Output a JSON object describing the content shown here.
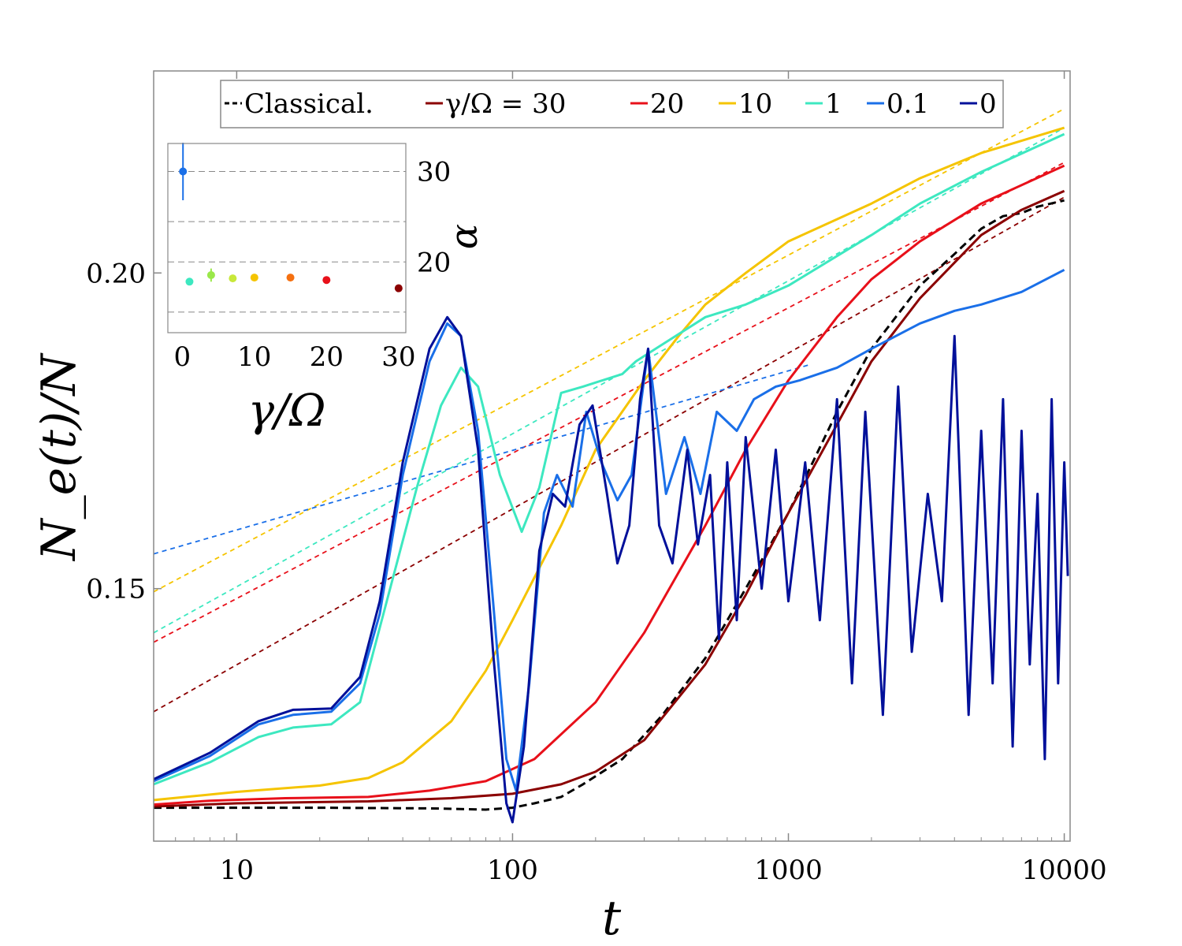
{
  "chart_data": {
    "type": "line",
    "xlabel": "t",
    "ylabel": "N_e(t)/N",
    "xscale": "log",
    "xlim": [
      5,
      10500
    ],
    "ylim": [
      0.11,
      0.232
    ],
    "x_ticks": [
      10,
      100,
      1000,
      10000
    ],
    "x_tick_labels": [
      "10",
      "100",
      "1000",
      "10000"
    ],
    "y_ticks": [
      0.15,
      0.2
    ],
    "y_tick_labels": [
      "0.15",
      "0.20"
    ],
    "legend": {
      "placement": "top-center",
      "entries": [
        {
          "label": "Classical.",
          "color": "#000000",
          "style": "dashed"
        },
        {
          "label": "γ/Ω = 30",
          "color": "#8b0000",
          "style": "solid"
        },
        {
          "label": "20",
          "color": "#e8101a",
          "style": "solid"
        },
        {
          "label": "10",
          "color": "#f5c400",
          "style": "solid"
        },
        {
          "label": "1",
          "color": "#3de8c0",
          "style": "solid"
        },
        {
          "label": "0.1",
          "color": "#1a6fe8",
          "style": "solid"
        },
        {
          "label": "0",
          "color": "#00109a",
          "style": "solid"
        }
      ]
    },
    "series": [
      {
        "name": "Classical.",
        "color": "#000000",
        "style": "dashed",
        "points": [
          [
            5,
            0.1153
          ],
          [
            20,
            0.1153
          ],
          [
            50,
            0.1152
          ],
          [
            80,
            0.115
          ],
          [
            100,
            0.1153
          ],
          [
            120,
            0.116
          ],
          [
            150,
            0.117
          ],
          [
            180,
            0.119
          ],
          [
            250,
            0.123
          ],
          [
            350,
            0.13
          ],
          [
            500,
            0.139
          ],
          [
            700,
            0.15
          ],
          [
            1000,
            0.162
          ],
          [
            1500,
            0.178
          ],
          [
            2000,
            0.188
          ],
          [
            3000,
            0.198
          ],
          [
            4000,
            0.203
          ],
          [
            5000,
            0.207
          ],
          [
            6000,
            0.209
          ],
          [
            7000,
            0.2095
          ],
          [
            8000,
            0.2105
          ],
          [
            10000,
            0.2115
          ]
        ]
      },
      {
        "name": "γ/Ω = 30",
        "color": "#8b0000",
        "style": "solid",
        "points": [
          [
            5,
            0.1155
          ],
          [
            10,
            0.116
          ],
          [
            30,
            0.1163
          ],
          [
            60,
            0.1168
          ],
          [
            100,
            0.1175
          ],
          [
            150,
            0.119
          ],
          [
            200,
            0.121
          ],
          [
            300,
            0.126
          ],
          [
            500,
            0.138
          ],
          [
            700,
            0.149
          ],
          [
            1000,
            0.162
          ],
          [
            1500,
            0.176
          ],
          [
            2000,
            0.186
          ],
          [
            3000,
            0.196
          ],
          [
            5000,
            0.206
          ],
          [
            7000,
            0.21
          ],
          [
            10000,
            0.213
          ]
        ]
      },
      {
        "name": "20",
        "color": "#e8101a",
        "style": "solid",
        "points": [
          [
            5,
            0.1158
          ],
          [
            8,
            0.1164
          ],
          [
            15,
            0.1168
          ],
          [
            30,
            0.117
          ],
          [
            50,
            0.118
          ],
          [
            80,
            0.1195
          ],
          [
            120,
            0.123
          ],
          [
            200,
            0.132
          ],
          [
            300,
            0.143
          ],
          [
            500,
            0.16
          ],
          [
            700,
            0.172
          ],
          [
            1000,
            0.183
          ],
          [
            1500,
            0.193
          ],
          [
            2000,
            0.199
          ],
          [
            3000,
            0.205
          ],
          [
            5000,
            0.211
          ],
          [
            10000,
            0.217
          ]
        ]
      },
      {
        "name": "10",
        "color": "#f5c400",
        "style": "solid",
        "points": [
          [
            5,
            0.1165
          ],
          [
            10,
            0.1178
          ],
          [
            20,
            0.1188
          ],
          [
            30,
            0.12
          ],
          [
            40,
            0.1225
          ],
          [
            60,
            0.129
          ],
          [
            80,
            0.137
          ],
          [
            100,
            0.145
          ],
          [
            150,
            0.16
          ],
          [
            200,
            0.172
          ],
          [
            300,
            0.183
          ],
          [
            400,
            0.19
          ],
          [
            500,
            0.195
          ],
          [
            700,
            0.2
          ],
          [
            1000,
            0.205
          ],
          [
            2000,
            0.211
          ],
          [
            3000,
            0.215
          ],
          [
            5000,
            0.219
          ],
          [
            10000,
            0.223
          ]
        ]
      },
      {
        "name": "1",
        "color": "#3de8c0",
        "style": "solid",
        "points": [
          [
            5,
            0.119
          ],
          [
            8,
            0.1225
          ],
          [
            12,
            0.1265
          ],
          [
            16,
            0.128
          ],
          [
            22,
            0.1285
          ],
          [
            28,
            0.132
          ],
          [
            35,
            0.148
          ],
          [
            45,
            0.166
          ],
          [
            55,
            0.179
          ],
          [
            65,
            0.185
          ],
          [
            75,
            0.182
          ],
          [
            90,
            0.168
          ],
          [
            108,
            0.159
          ],
          [
            125,
            0.166
          ],
          [
            150,
            0.181
          ],
          [
            180,
            0.182
          ],
          [
            250,
            0.184
          ],
          [
            280,
            0.186
          ],
          [
            330,
            0.188
          ],
          [
            500,
            0.193
          ],
          [
            700,
            0.195
          ],
          [
            1000,
            0.198
          ],
          [
            2000,
            0.206
          ],
          [
            3000,
            0.211
          ],
          [
            5000,
            0.216
          ],
          [
            10000,
            0.222
          ]
        ]
      },
      {
        "name": "0.1",
        "color": "#1a6fe8",
        "style": "solid",
        "points": [
          [
            5,
            0.1195
          ],
          [
            8,
            0.1235
          ],
          [
            12,
            0.1285
          ],
          [
            16,
            0.13
          ],
          [
            22,
            0.1305
          ],
          [
            28,
            0.135
          ],
          [
            33,
            0.146
          ],
          [
            40,
            0.168
          ],
          [
            50,
            0.186
          ],
          [
            58,
            0.192
          ],
          [
            65,
            0.19
          ],
          [
            75,
            0.175
          ],
          [
            85,
            0.148
          ],
          [
            95,
            0.123
          ],
          [
            103,
            0.118
          ],
          [
            115,
            0.135
          ],
          [
            130,
            0.162
          ],
          [
            145,
            0.168
          ],
          [
            165,
            0.163
          ],
          [
            185,
            0.178
          ],
          [
            210,
            0.17
          ],
          [
            240,
            0.164
          ],
          [
            270,
            0.168
          ],
          [
            310,
            0.188
          ],
          [
            360,
            0.165
          ],
          [
            420,
            0.174
          ],
          [
            480,
            0.165
          ],
          [
            550,
            0.178
          ],
          [
            650,
            0.175
          ],
          [
            750,
            0.18
          ],
          [
            900,
            0.182
          ],
          [
            1100,
            0.183
          ],
          [
            1500,
            0.185
          ],
          [
            2000,
            0.188
          ],
          [
            3000,
            0.192
          ],
          [
            4000,
            0.194
          ],
          [
            5000,
            0.195
          ],
          [
            7000,
            0.197
          ],
          [
            10000,
            0.2005
          ]
        ]
      },
      {
        "name": "0",
        "color": "#00109a",
        "style": "solid",
        "points": [
          [
            5,
            0.1198
          ],
          [
            8,
            0.124
          ],
          [
            12,
            0.129
          ],
          [
            16,
            0.1308
          ],
          [
            22,
            0.131
          ],
          [
            28,
            0.136
          ],
          [
            33,
            0.148
          ],
          [
            40,
            0.17
          ],
          [
            50,
            0.188
          ],
          [
            58,
            0.193
          ],
          [
            65,
            0.19
          ],
          [
            75,
            0.172
          ],
          [
            85,
            0.14
          ],
          [
            95,
            0.116
          ],
          [
            100,
            0.113
          ],
          [
            110,
            0.125
          ],
          [
            125,
            0.156
          ],
          [
            140,
            0.165
          ],
          [
            155,
            0.163
          ],
          [
            175,
            0.176
          ],
          [
            195,
            0.179
          ],
          [
            220,
            0.165
          ],
          [
            240,
            0.154
          ],
          [
            265,
            0.16
          ],
          [
            290,
            0.18
          ],
          [
            310,
            0.188
          ],
          [
            340,
            0.16
          ],
          [
            380,
            0.154
          ],
          [
            430,
            0.172
          ],
          [
            470,
            0.157
          ],
          [
            520,
            0.168
          ],
          [
            560,
            0.142
          ],
          [
            600,
            0.17
          ],
          [
            650,
            0.145
          ],
          [
            700,
            0.174
          ],
          [
            800,
            0.15
          ],
          [
            900,
            0.172
          ],
          [
            1000,
            0.148
          ],
          [
            1150,
            0.17
          ],
          [
            1300,
            0.145
          ],
          [
            1500,
            0.18
          ],
          [
            1700,
            0.135
          ],
          [
            1900,
            0.178
          ],
          [
            2200,
            0.13
          ],
          [
            2500,
            0.182
          ],
          [
            2800,
            0.14
          ],
          [
            3200,
            0.165
          ],
          [
            3600,
            0.148
          ],
          [
            4000,
            0.19
          ],
          [
            4500,
            0.13
          ],
          [
            5000,
            0.175
          ],
          [
            5500,
            0.135
          ],
          [
            6000,
            0.18
          ],
          [
            6500,
            0.125
          ],
          [
            7000,
            0.175
          ],
          [
            7500,
            0.138
          ],
          [
            8000,
            0.165
          ],
          [
            8500,
            0.123
          ],
          [
            9000,
            0.18
          ],
          [
            9500,
            0.135
          ],
          [
            10000,
            0.17
          ],
          [
            10300,
            0.152
          ]
        ]
      }
    ],
    "fits": [
      {
        "name": "fit 30",
        "color": "#8b0000",
        "x0": 5,
        "y0": 0.1305,
        "x1": 10000,
        "y1": 0.212
      },
      {
        "name": "fit 20",
        "color": "#e8101a",
        "x0": 5,
        "y0": 0.1415,
        "x1": 10000,
        "y1": 0.2175
      },
      {
        "name": "fit 10",
        "color": "#f5c400",
        "x0": 5,
        "y0": 0.1495,
        "x1": 10000,
        "y1": 0.226
      },
      {
        "name": "fit 1",
        "color": "#3de8c0",
        "x0": 5,
        "y0": 0.143,
        "x1": 10000,
        "y1": 0.223
      },
      {
        "name": "fit 0.1",
        "color": "#1a6fe8",
        "x0": 5,
        "y0": 0.1555,
        "x1": 1200,
        "y1": 0.1855
      }
    ],
    "inset": {
      "type": "scatter",
      "xlabel": "γ/Ω",
      "ylabel": "α",
      "xlim": [
        -2,
        31
      ],
      "ylim": [
        11.5,
        34.5
      ],
      "x_ticks": [
        0,
        10,
        20,
        30
      ],
      "x_tick_labels": [
        "0",
        "10",
        "20",
        "30"
      ],
      "y_ticks": [
        20,
        30
      ],
      "y_tick_labels": [
        "20",
        "30"
      ],
      "gridlines_y": [
        14.0,
        20.1,
        25.0,
        31.1
      ],
      "points": [
        {
          "x": 0.1,
          "y": 31.1,
          "err": 3.5,
          "color": "#1a6fe8"
        },
        {
          "x": 1,
          "y": 17.7,
          "err": 0,
          "color": "#3de8c0"
        },
        {
          "x": 4,
          "y": 18.5,
          "err": 0.8,
          "color": "#9ae84a"
        },
        {
          "x": 7,
          "y": 18.1,
          "err": 0,
          "color": "#c8e83a"
        },
        {
          "x": 10,
          "y": 18.2,
          "err": 0,
          "color": "#f5c400"
        },
        {
          "x": 15,
          "y": 18.2,
          "err": 0,
          "color": "#f57010"
        },
        {
          "x": 20,
          "y": 17.9,
          "err": 0,
          "color": "#e8101a"
        },
        {
          "x": 30,
          "y": 16.9,
          "err": 0,
          "color": "#8b0000"
        }
      ]
    }
  }
}
